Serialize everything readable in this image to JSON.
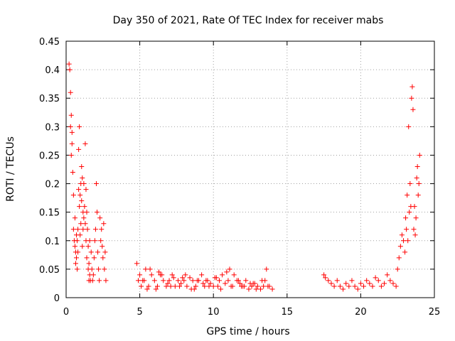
{
  "chart_data": {
    "type": "scatter",
    "title": "Day 350 of 2021, Rate Of TEC Index for receiver mabs",
    "xlabel": "GPS time / hours",
    "ylabel": "ROTI / TECUs",
    "xlim": [
      0,
      25
    ],
    "ylim": [
      0,
      0.45
    ],
    "x_ticks": [
      "0",
      "5",
      "10",
      "15",
      "20",
      "25"
    ],
    "y_ticks": [
      "0",
      "0.05",
      "0.1",
      "0.15",
      "0.2",
      "0.25",
      "0.3",
      "0.35",
      "0.4",
      "0.45"
    ],
    "grid": true,
    "marker": "+",
    "color": "#ff0000",
    "series": [
      {
        "x": [
          0.2,
          0.25,
          0.3,
          0.3,
          0.35,
          0.35,
          0.4,
          0.4,
          0.45,
          0.5,
          0.5,
          0.55,
          0.6,
          0.6,
          0.65,
          0.65,
          0.7,
          0.7,
          0.75,
          0.75,
          0.8,
          0.8,
          0.85,
          0.85,
          0.9,
          0.9,
          0.95,
          0.95,
          1.0,
          1.0,
          1.05,
          1.05,
          1.1,
          1.1,
          1.15,
          1.15,
          1.2,
          1.2,
          1.25,
          1.3,
          1.3,
          1.35,
          1.35,
          1.4,
          1.4,
          1.45,
          1.5,
          1.5,
          1.55,
          1.55,
          1.6,
          1.6,
          1.65,
          1.7,
          1.75,
          1.8,
          1.85,
          1.9,
          1.95,
          2.0,
          2.05,
          2.1,
          2.15,
          2.2,
          2.25,
          2.3,
          2.35,
          2.4,
          2.45,
          2.5,
          2.55,
          2.6,
          2.65,
          2.7,
          4.8,
          4.9,
          5.0,
          5.1,
          5.2,
          5.4,
          5.6,
          5.8,
          6.0,
          6.2,
          6.4,
          6.6,
          6.8,
          7.0,
          7.2,
          7.4,
          7.6,
          7.8,
          8.0,
          8.2,
          8.4,
          8.6,
          8.8,
          9.0,
          9.2,
          9.4,
          9.6,
          9.8,
          10.0,
          10.2,
          10.4,
          10.6,
          10.8,
          11.0,
          11.2,
          11.4,
          11.6,
          11.8,
          12.0,
          12.2,
          12.4,
          12.6,
          12.8,
          13.0,
          13.2,
          13.4,
          13.6,
          13.8,
          14.0,
          5.3,
          5.7,
          6.1,
          6.5,
          6.9,
          7.3,
          7.7,
          8.1,
          8.5,
          8.9,
          9.3,
          9.7,
          10.1,
          10.5,
          10.9,
          11.3,
          11.7,
          12.1,
          12.5,
          12.9,
          13.3,
          13.7,
          5.5,
          6.3,
          7.1,
          7.9,
          8.7,
          9.5,
          10.3,
          11.1,
          11.9,
          12.7,
          13.5,
          17.5,
          17.6,
          17.8,
          18.0,
          18.2,
          18.4,
          18.6,
          18.8,
          19.0,
          19.2,
          19.4,
          19.6,
          19.8,
          20.0,
          20.2,
          20.4,
          20.6,
          20.8,
          21.0,
          21.2,
          21.4,
          21.6,
          21.8,
          22.0,
          22.2,
          22.4,
          22.5,
          22.6,
          22.7,
          22.8,
          22.9,
          23.0,
          23.05,
          23.1,
          23.15,
          23.2,
          23.25,
          23.3,
          23.35,
          23.4,
          23.45,
          23.5,
          23.55,
          23.6,
          23.65,
          23.7,
          23.75,
          23.8,
          23.85,
          23.9,
          23.95,
          24.0
        ],
        "y": [
          0.41,
          0.4,
          0.36,
          0.3,
          0.32,
          0.25,
          0.29,
          0.27,
          0.22,
          0.18,
          0.12,
          0.1,
          0.14,
          0.09,
          0.08,
          0.06,
          0.11,
          0.07,
          0.1,
          0.05,
          0.12,
          0.08,
          0.26,
          0.19,
          0.3,
          0.16,
          0.18,
          0.11,
          0.2,
          0.13,
          0.23,
          0.17,
          0.21,
          0.09,
          0.15,
          0.12,
          0.2,
          0.14,
          0.16,
          0.27,
          0.13,
          0.19,
          0.1,
          0.15,
          0.07,
          0.12,
          0.05,
          0.09,
          0.03,
          0.06,
          0.04,
          0.1,
          0.03,
          0.08,
          0.05,
          0.03,
          0.04,
          0.07,
          0.1,
          0.12,
          0.2,
          0.15,
          0.08,
          0.05,
          0.03,
          0.14,
          0.1,
          0.12,
          0.09,
          0.07,
          0.13,
          0.05,
          0.08,
          0.03,
          0.06,
          0.03,
          0.04,
          0.02,
          0.03,
          0.05,
          0.02,
          0.04,
          0.03,
          0.02,
          0.04,
          0.03,
          0.02,
          0.03,
          0.04,
          0.02,
          0.03,
          0.025,
          0.03,
          0.02,
          0.035,
          0.03,
          0.02,
          0.03,
          0.04,
          0.02,
          0.03,
          0.025,
          0.02,
          0.035,
          0.03,
          0.04,
          0.025,
          0.03,
          0.02,
          0.04,
          0.03,
          0.025,
          0.02,
          0.03,
          0.015,
          0.02,
          0.025,
          0.02,
          0.015,
          0.02,
          0.05,
          0.02,
          0.015,
          0.03,
          0.05,
          0.015,
          0.04,
          0.025,
          0.035,
          0.02,
          0.04,
          0.015,
          0.03,
          0.025,
          0.02,
          0.035,
          0.015,
          0.045,
          0.02,
          0.03,
          0.02,
          0.025,
          0.015,
          0.03,
          0.02,
          0.015,
          0.045,
          0.02,
          0.035,
          0.015,
          0.03,
          0.02,
          0.05,
          0.02,
          0.025,
          0.03,
          0.04,
          0.035,
          0.03,
          0.025,
          0.02,
          0.03,
          0.02,
          0.015,
          0.025,
          0.02,
          0.03,
          0.02,
          0.015,
          0.025,
          0.02,
          0.03,
          0.025,
          0.02,
          0.035,
          0.03,
          0.02,
          0.025,
          0.04,
          0.03,
          0.025,
          0.02,
          0.05,
          0.07,
          0.09,
          0.11,
          0.1,
          0.08,
          0.14,
          0.12,
          0.18,
          0.1,
          0.3,
          0.15,
          0.2,
          0.16,
          0.35,
          0.37,
          0.33,
          0.12,
          0.16,
          0.11,
          0.14,
          0.21,
          0.23,
          0.18,
          0.2,
          0.25
        ]
      }
    ]
  }
}
